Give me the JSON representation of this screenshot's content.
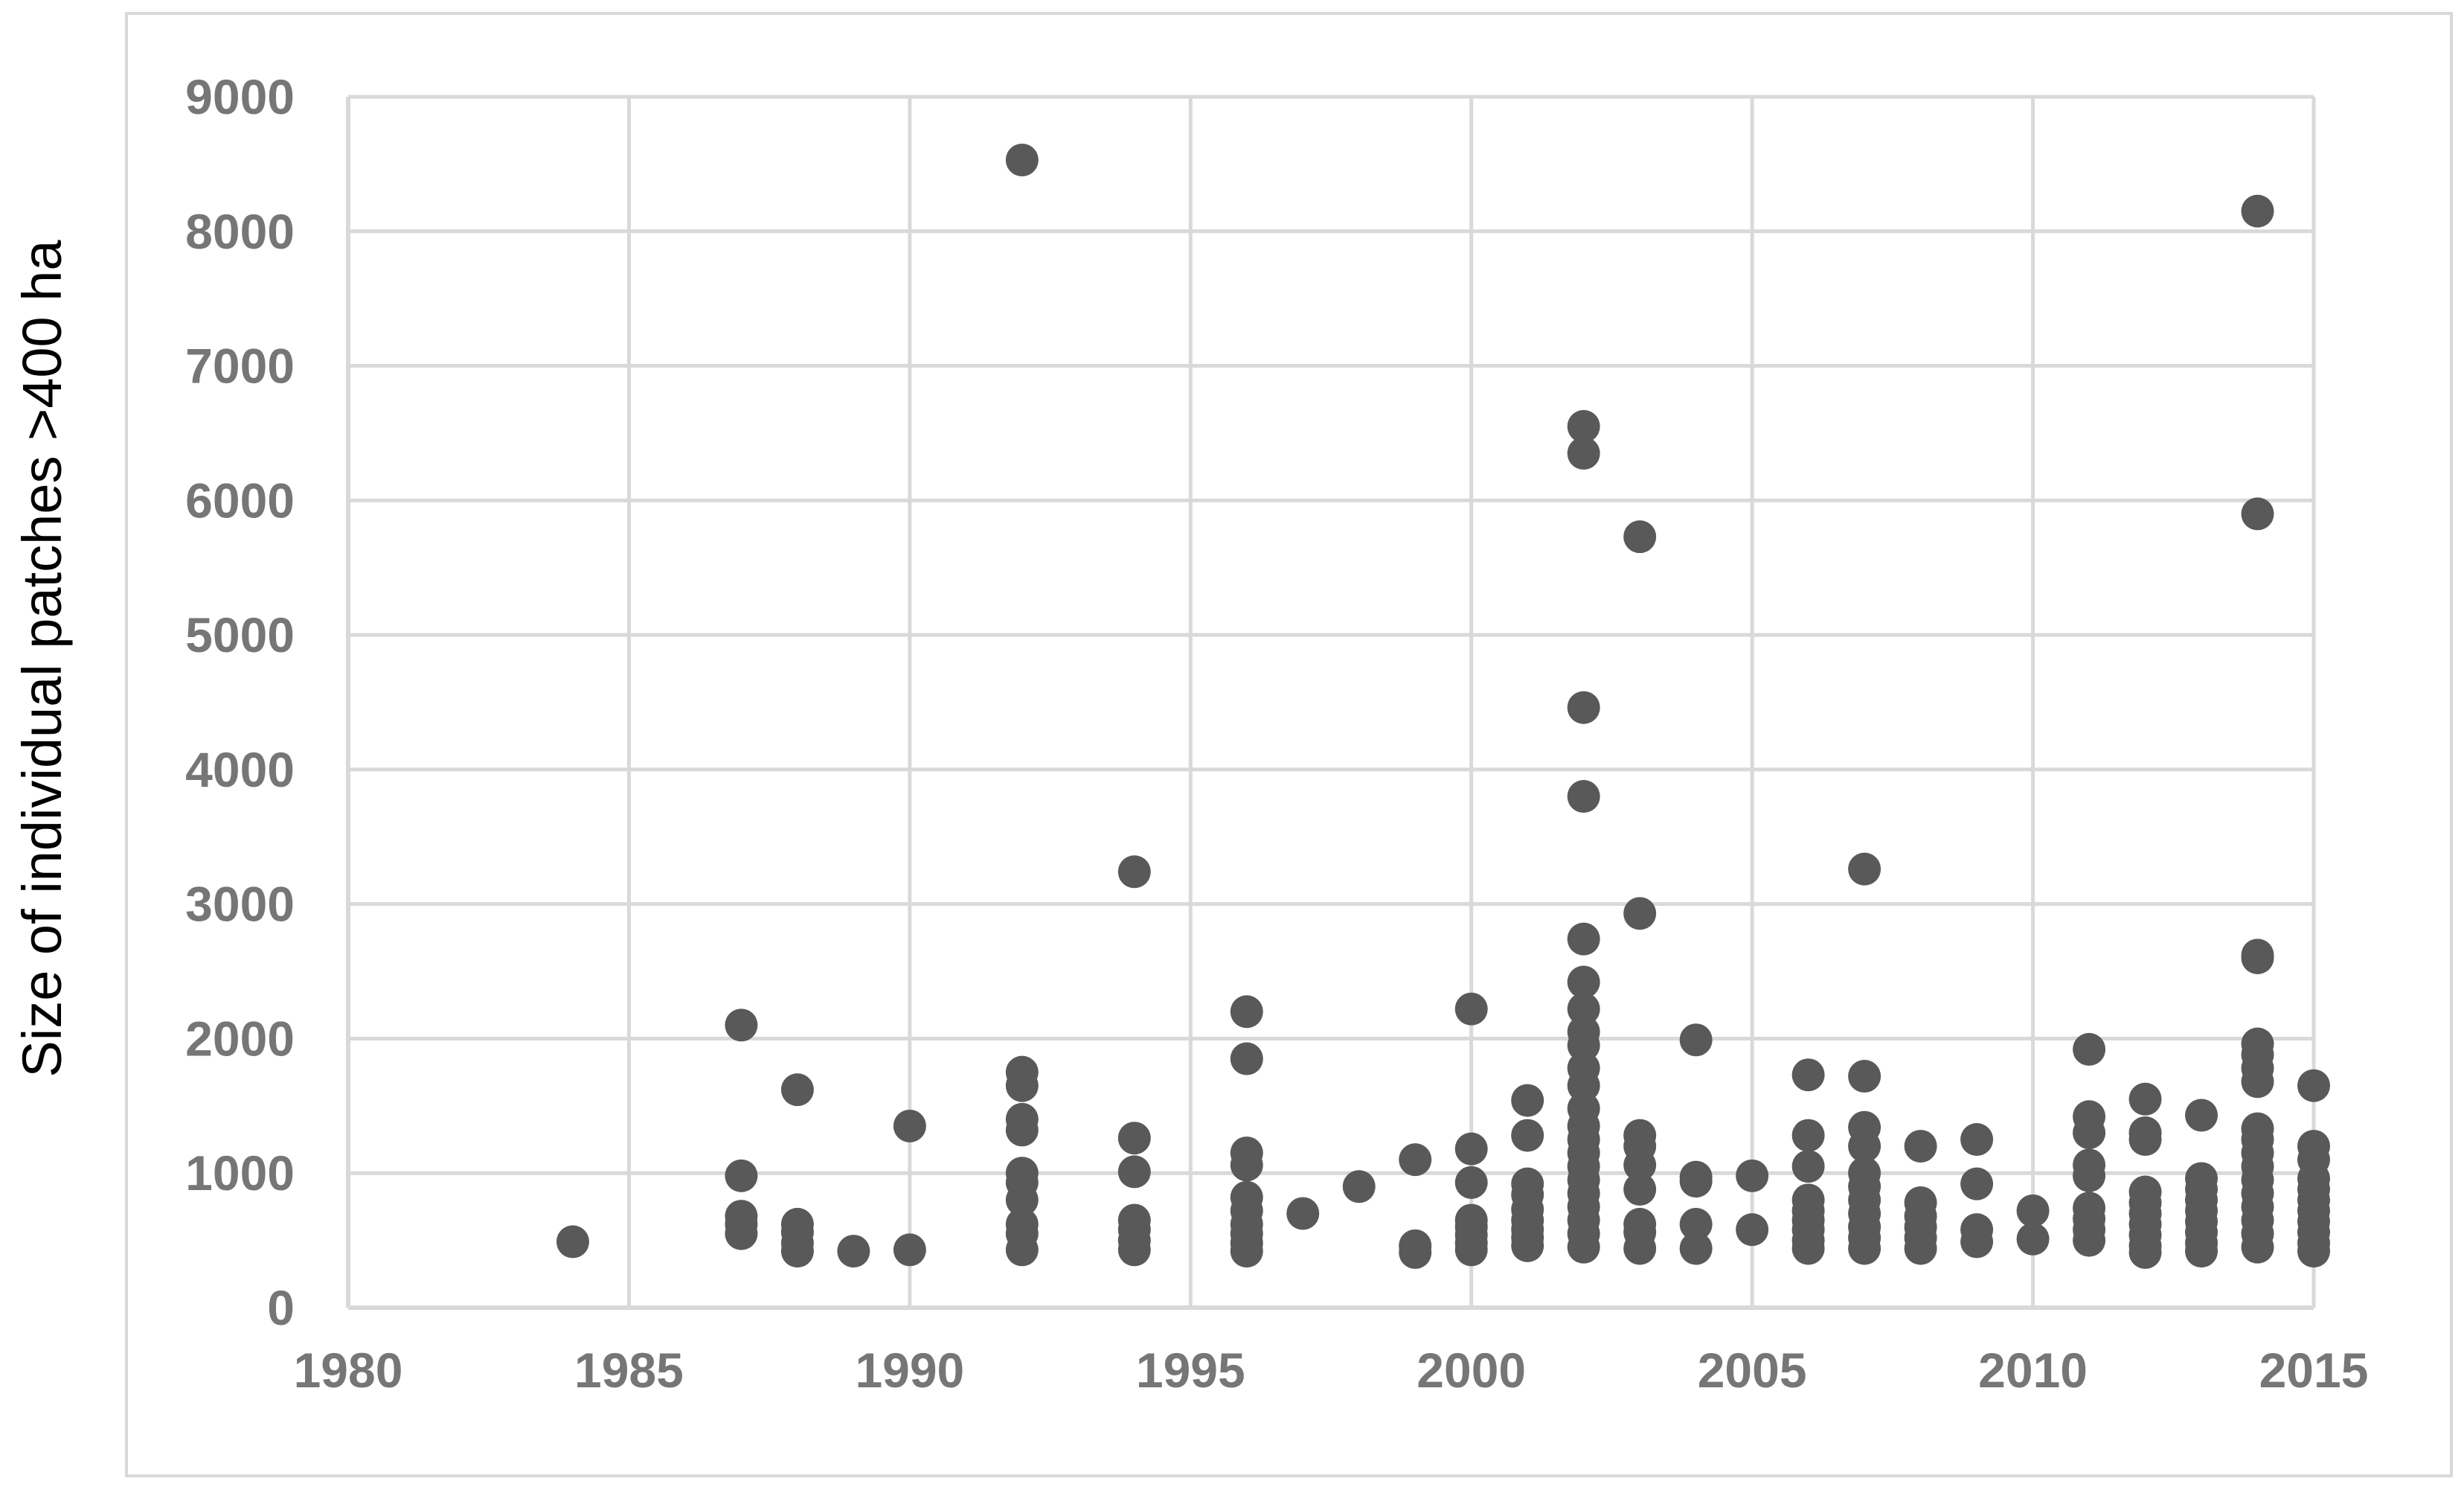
{
  "chart_data": {
    "type": "scatter",
    "title": "",
    "xlabel": "",
    "ylabel": "Size of individual patches >400 ha",
    "xlim": [
      1980,
      2015
    ],
    "ylim": [
      0,
      9000
    ],
    "xticks": [
      1980,
      1985,
      1990,
      1995,
      2000,
      2005,
      2010,
      2015
    ],
    "yticks": [
      0,
      1000,
      2000,
      3000,
      4000,
      5000,
      6000,
      7000,
      8000,
      9000
    ],
    "grid": true,
    "legend": "none",
    "marker_color": "#595959",
    "points": [
      [
        1984,
        490
      ],
      [
        1987,
        2100
      ],
      [
        1987,
        980
      ],
      [
        1987,
        680
      ],
      [
        1987,
        620
      ],
      [
        1987,
        550
      ],
      [
        1988,
        1620
      ],
      [
        1988,
        620
      ],
      [
        1988,
        560
      ],
      [
        1988,
        480
      ],
      [
        1988,
        420
      ],
      [
        1989,
        420
      ],
      [
        1990,
        1350
      ],
      [
        1990,
        430
      ],
      [
        1992,
        8530
      ],
      [
        1992,
        1750
      ],
      [
        1992,
        1650
      ],
      [
        1992,
        1400
      ],
      [
        1992,
        1320
      ],
      [
        1992,
        1000
      ],
      [
        1992,
        930
      ],
      [
        1992,
        800
      ],
      [
        1992,
        620
      ],
      [
        1992,
        550
      ],
      [
        1992,
        430
      ],
      [
        1994,
        3240
      ],
      [
        1994,
        1260
      ],
      [
        1994,
        1010
      ],
      [
        1994,
        650
      ],
      [
        1994,
        580
      ],
      [
        1994,
        500
      ],
      [
        1994,
        430
      ],
      [
        1996,
        2200
      ],
      [
        1996,
        1850
      ],
      [
        1996,
        1150
      ],
      [
        1996,
        1060
      ],
      [
        1996,
        820
      ],
      [
        1996,
        720
      ],
      [
        1996,
        620
      ],
      [
        1996,
        550
      ],
      [
        1996,
        480
      ],
      [
        1996,
        420
      ],
      [
        1997,
        700
      ],
      [
        1998,
        900
      ],
      [
        1999,
        1100
      ],
      [
        1999,
        460
      ],
      [
        1999,
        410
      ],
      [
        2000,
        2220
      ],
      [
        2000,
        1180
      ],
      [
        2000,
        930
      ],
      [
        2000,
        650
      ],
      [
        2000,
        600
      ],
      [
        2000,
        540
      ],
      [
        2000,
        480
      ],
      [
        2000,
        430
      ],
      [
        2001,
        1540
      ],
      [
        2001,
        1280
      ],
      [
        2001,
        920
      ],
      [
        2001,
        840
      ],
      [
        2001,
        730
      ],
      [
        2001,
        650
      ],
      [
        2001,
        580
      ],
      [
        2001,
        520
      ],
      [
        2001,
        460
      ],
      [
        2002,
        6550
      ],
      [
        2002,
        6350
      ],
      [
        2002,
        4460
      ],
      [
        2002,
        3800
      ],
      [
        2002,
        2740
      ],
      [
        2002,
        2420
      ],
      [
        2002,
        2220
      ],
      [
        2002,
        2050
      ],
      [
        2002,
        1950
      ],
      [
        2002,
        1780
      ],
      [
        2002,
        1650
      ],
      [
        2002,
        1480
      ],
      [
        2002,
        1350
      ],
      [
        2002,
        1250
      ],
      [
        2002,
        1150
      ],
      [
        2002,
        1050
      ],
      [
        2002,
        950
      ],
      [
        2002,
        850
      ],
      [
        2002,
        750
      ],
      [
        2002,
        650
      ],
      [
        2002,
        550
      ],
      [
        2002,
        450
      ],
      [
        2003,
        5730
      ],
      [
        2003,
        2930
      ],
      [
        2003,
        1280
      ],
      [
        2003,
        1200
      ],
      [
        2003,
        1060
      ],
      [
        2003,
        880
      ],
      [
        2003,
        620
      ],
      [
        2003,
        560
      ],
      [
        2003,
        440
      ],
      [
        2004,
        1990
      ],
      [
        2004,
        970
      ],
      [
        2004,
        940
      ],
      [
        2004,
        620
      ],
      [
        2004,
        440
      ],
      [
        2005,
        980
      ],
      [
        2005,
        580
      ],
      [
        2006,
        1730
      ],
      [
        2006,
        1280
      ],
      [
        2006,
        1050
      ],
      [
        2006,
        800
      ],
      [
        2006,
        720
      ],
      [
        2006,
        650
      ],
      [
        2006,
        580
      ],
      [
        2006,
        500
      ],
      [
        2006,
        440
      ],
      [
        2007,
        3260
      ],
      [
        2007,
        1720
      ],
      [
        2007,
        1340
      ],
      [
        2007,
        1200
      ],
      [
        2007,
        1000
      ],
      [
        2007,
        900
      ],
      [
        2007,
        800
      ],
      [
        2007,
        700
      ],
      [
        2007,
        600
      ],
      [
        2007,
        520
      ],
      [
        2007,
        440
      ],
      [
        2008,
        1200
      ],
      [
        2008,
        780
      ],
      [
        2008,
        680
      ],
      [
        2008,
        600
      ],
      [
        2008,
        520
      ],
      [
        2008,
        440
      ],
      [
        2009,
        1250
      ],
      [
        2009,
        920
      ],
      [
        2009,
        580
      ],
      [
        2009,
        490
      ],
      [
        2010,
        720
      ],
      [
        2010,
        510
      ],
      [
        2011,
        1920
      ],
      [
        2011,
        1420
      ],
      [
        2011,
        1300
      ],
      [
        2011,
        1060
      ],
      [
        2011,
        980
      ],
      [
        2011,
        740
      ],
      [
        2011,
        660
      ],
      [
        2011,
        580
      ],
      [
        2011,
        500
      ],
      [
        2012,
        1550
      ],
      [
        2012,
        1300
      ],
      [
        2012,
        1250
      ],
      [
        2012,
        860
      ],
      [
        2012,
        780
      ],
      [
        2012,
        700
      ],
      [
        2012,
        620
      ],
      [
        2012,
        540
      ],
      [
        2012,
        460
      ],
      [
        2012,
        410
      ],
      [
        2013,
        1430
      ],
      [
        2013,
        960
      ],
      [
        2013,
        880
      ],
      [
        2013,
        800
      ],
      [
        2013,
        720
      ],
      [
        2013,
        640
      ],
      [
        2013,
        560
      ],
      [
        2013,
        480
      ],
      [
        2013,
        420
      ],
      [
        2014,
        8150
      ],
      [
        2014,
        5900
      ],
      [
        2014,
        2620
      ],
      [
        2014,
        2600
      ],
      [
        2014,
        1960
      ],
      [
        2014,
        1880
      ],
      [
        2014,
        1780
      ],
      [
        2014,
        1680
      ],
      [
        2014,
        1330
      ],
      [
        2014,
        1250
      ],
      [
        2014,
        1150
      ],
      [
        2014,
        1050
      ],
      [
        2014,
        950
      ],
      [
        2014,
        850
      ],
      [
        2014,
        750
      ],
      [
        2014,
        650
      ],
      [
        2014,
        550
      ],
      [
        2014,
        450
      ],
      [
        2015,
        1650
      ],
      [
        2015,
        1200
      ],
      [
        2015,
        1100
      ],
      [
        2015,
        960
      ],
      [
        2015,
        880
      ],
      [
        2015,
        800
      ],
      [
        2015,
        720
      ],
      [
        2015,
        640
      ],
      [
        2015,
        560
      ],
      [
        2015,
        480
      ],
      [
        2015,
        420
      ]
    ]
  }
}
